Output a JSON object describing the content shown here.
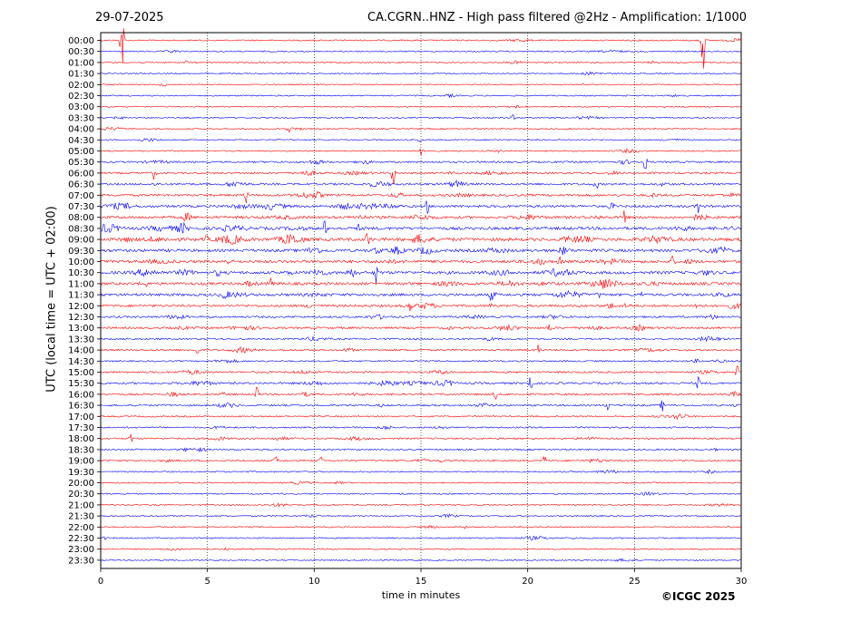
{
  "header": {
    "date": "29-07-2025",
    "title": "CA.CGRN..HNZ - High pass filtered @2Hz - Amplification: 1/1000"
  },
  "footer": {
    "copyright": "©ICGC 2025"
  },
  "colors": {
    "odd_trace": "#ff0000",
    "even_trace": "#0000ff",
    "grid": "#000000"
  },
  "chart_data": {
    "type": "line",
    "xlabel": "time in minutes",
    "ylabel": "UTC (local time = UTC + 02:00)",
    "xlim": [
      0,
      30
    ],
    "x_ticks": [
      0,
      5,
      10,
      15,
      20,
      25,
      30
    ],
    "x_tick_labels": [
      "0",
      "5",
      "10",
      "15",
      "20",
      "25",
      "30"
    ],
    "grid": "vertical dotted at 5, 10, 15, 20, 25",
    "rows": [
      "00:00",
      "00:30",
      "01:00",
      "01:30",
      "02:00",
      "02:30",
      "03:00",
      "03:30",
      "04:00",
      "04:30",
      "05:00",
      "05:30",
      "06:00",
      "06:30",
      "07:00",
      "07:30",
      "08:00",
      "08:30",
      "09:00",
      "09:30",
      "10:00",
      "10:30",
      "11:00",
      "11:30",
      "12:00",
      "12:30",
      "13:00",
      "13:30",
      "14:00",
      "14:30",
      "15:00",
      "15:30",
      "16:00",
      "16:30",
      "17:00",
      "17:30",
      "18:00",
      "18:30",
      "19:00",
      "19:30",
      "20:00",
      "20:30",
      "21:00",
      "21:30",
      "22:00",
      "22:30",
      "23:00",
      "23:30"
    ],
    "row_activity": [
      0.15,
      0.12,
      0.12,
      0.1,
      0.1,
      0.12,
      0.1,
      0.12,
      0.12,
      0.12,
      0.15,
      0.3,
      0.35,
      0.4,
      0.45,
      0.55,
      0.6,
      0.7,
      0.8,
      0.7,
      0.65,
      0.7,
      0.65,
      0.6,
      0.5,
      0.35,
      0.4,
      0.25,
      0.3,
      0.2,
      0.3,
      0.4,
      0.35,
      0.3,
      0.2,
      0.2,
      0.25,
      0.2,
      0.25,
      0.15,
      0.12,
      0.12,
      0.12,
      0.12,
      0.12,
      0.15,
      0.1,
      0.1
    ],
    "events": [
      {
        "row": "00:00",
        "minute": 1.0,
        "amplitude": 6.0
      },
      {
        "row": "00:00",
        "minute": 28.2,
        "amplitude": 6.0
      },
      {
        "row": "01:00",
        "minute": 4.0,
        "amplitude": 0.3
      },
      {
        "row": "03:30",
        "minute": 19.3,
        "amplitude": 0.4
      },
      {
        "row": "04:00",
        "minute": 8.8,
        "amplitude": 0.5
      },
      {
        "row": "04:30",
        "minute": 14.9,
        "amplitude": 0.5
      },
      {
        "row": "05:00",
        "minute": 15.0,
        "amplitude": 0.6
      },
      {
        "row": "05:30",
        "minute": 25.5,
        "amplitude": 1.2
      },
      {
        "row": "06:00",
        "minute": 2.5,
        "amplitude": 1.0
      },
      {
        "row": "06:00",
        "minute": 13.7,
        "amplitude": 2.0
      },
      {
        "row": "06:30",
        "minute": 23.2,
        "amplitude": 1.0
      },
      {
        "row": "07:00",
        "minute": 6.8,
        "amplitude": 1.2
      },
      {
        "row": "07:30",
        "minute": 15.3,
        "amplitude": 1.0
      },
      {
        "row": "07:30",
        "minute": 28.0,
        "amplitude": 1.2
      },
      {
        "row": "08:00",
        "minute": 24.5,
        "amplitude": 1.5
      },
      {
        "row": "08:30",
        "minute": 10.5,
        "amplitude": 1.2
      },
      {
        "row": "09:00",
        "minute": 12.5,
        "amplitude": 1.3
      },
      {
        "row": "09:00",
        "minute": 21.8,
        "amplitude": 1.3
      },
      {
        "row": "10:00",
        "minute": 21.5,
        "amplitude": 1.0
      },
      {
        "row": "10:00",
        "minute": 26.8,
        "amplitude": 1.0
      },
      {
        "row": "10:30",
        "minute": 12.9,
        "amplitude": 1.5
      },
      {
        "row": "11:00",
        "minute": 8.0,
        "amplitude": 1.0
      },
      {
        "row": "11:30",
        "minute": 18.3,
        "amplitude": 1.0
      },
      {
        "row": "12:00",
        "minute": 14.5,
        "amplitude": 1.0
      },
      {
        "row": "13:00",
        "minute": 21.0,
        "amplitude": 0.8
      },
      {
        "row": "14:00",
        "minute": 4.5,
        "amplitude": 0.8
      },
      {
        "row": "14:00",
        "minute": 20.5,
        "amplitude": 0.8
      },
      {
        "row": "15:00",
        "minute": 29.8,
        "amplitude": 1.0
      },
      {
        "row": "15:30",
        "minute": 20.1,
        "amplitude": 2.0
      },
      {
        "row": "15:30",
        "minute": 28.0,
        "amplitude": 1.0
      },
      {
        "row": "16:00",
        "minute": 7.3,
        "amplitude": 1.0
      },
      {
        "row": "16:00",
        "minute": 18.5,
        "amplitude": 0.8
      },
      {
        "row": "16:30",
        "minute": 26.3,
        "amplitude": 0.8
      },
      {
        "row": "16:30",
        "minute": 23.7,
        "amplitude": 1.5
      },
      {
        "row": "18:00",
        "minute": 1.4,
        "amplitude": 0.8
      },
      {
        "row": "19:00",
        "minute": 8.2,
        "amplitude": 0.8
      },
      {
        "row": "19:00",
        "minute": 20.8,
        "amplitude": 1.0
      },
      {
        "row": "19:00",
        "minute": 10.3,
        "amplitude": 0.6
      },
      {
        "row": "22:30",
        "minute": 0.2,
        "amplitude": 0.5
      },
      {
        "row": "23:00",
        "minute": 5.9,
        "amplitude": 0.3
      }
    ]
  }
}
